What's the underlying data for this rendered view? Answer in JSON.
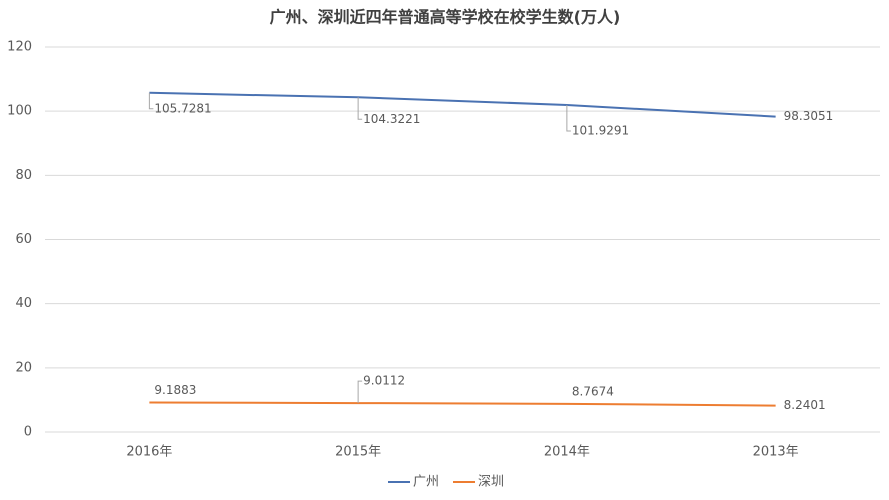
{
  "chart_data": {
    "type": "line",
    "title": "广州、深圳近四年普通高等学校在校学生数(万人)",
    "categories": [
      "2016年",
      "2015年",
      "2014年",
      "2013年"
    ],
    "series": [
      {
        "name": "广州",
        "color": "#4a72b2",
        "values": [
          105.7281,
          104.3221,
          101.9291,
          98.3051
        ]
      },
      {
        "name": "深圳",
        "color": "#ed7d31",
        "values": [
          9.1883,
          9.0112,
          8.7674,
          8.2401
        ]
      }
    ],
    "ylim": [
      0,
      120
    ],
    "yticks": [
      0,
      20,
      40,
      60,
      80,
      100,
      120
    ],
    "grid": true,
    "legend": "bottom"
  }
}
